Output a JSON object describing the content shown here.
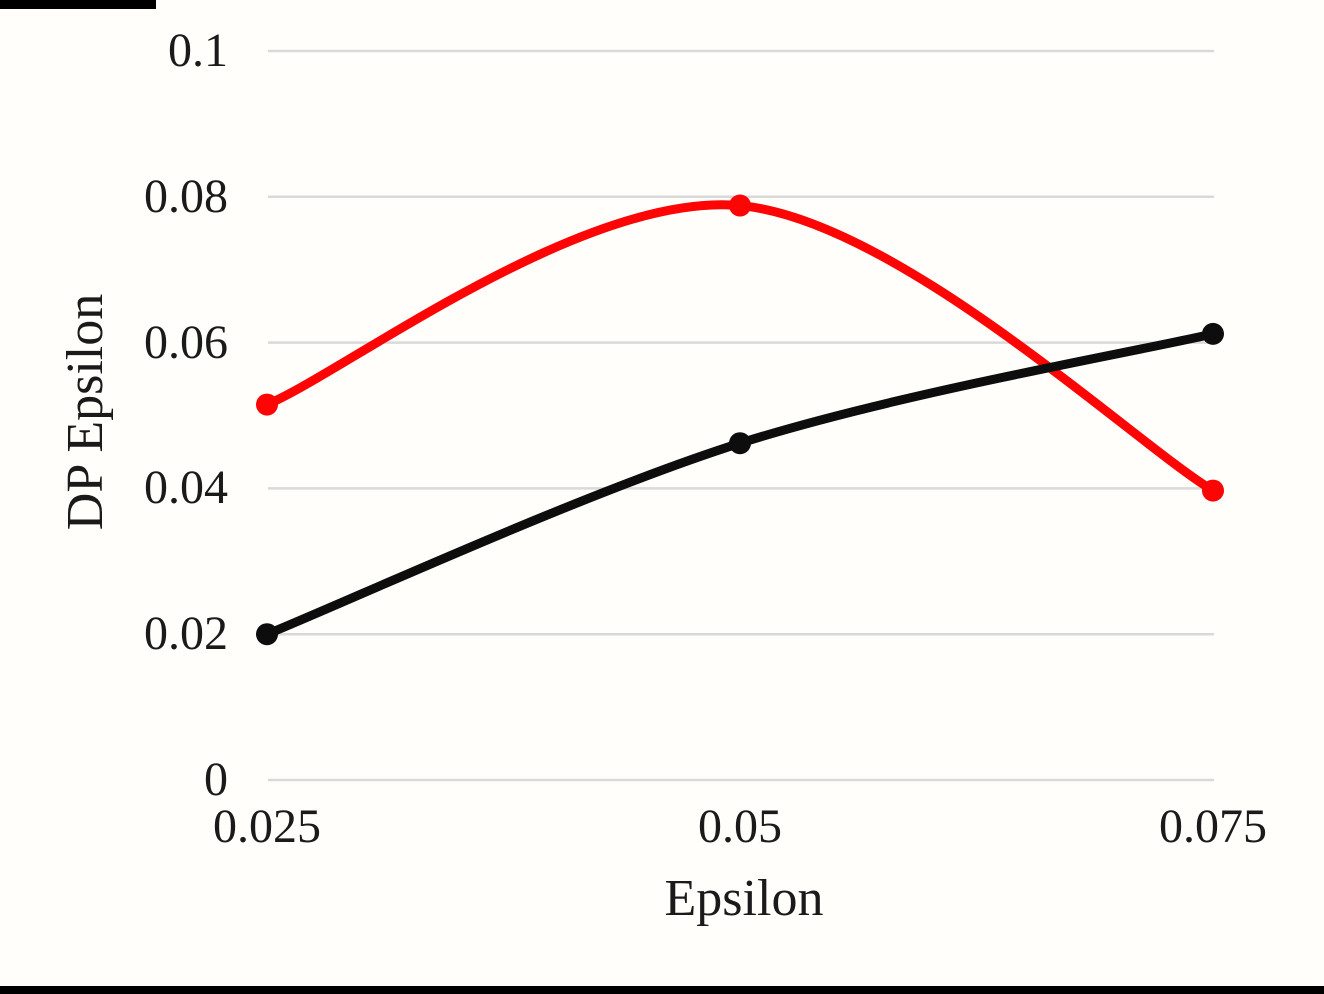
{
  "colors": {
    "background": "#fffefb",
    "gridline": "#d9d9d9",
    "artifact_bar": "#000000",
    "series_red": "#fe0505",
    "series_black": "#0d0d0d"
  },
  "chart_data": {
    "type": "line",
    "title": "",
    "xlabel": "Epsilon",
    "ylabel": "DP Epsilon",
    "x": [
      0.025,
      0.05,
      0.075
    ],
    "x_tick_labels": [
      "0.025",
      "0.05",
      "0.075"
    ],
    "y_tick_labels": [
      "0",
      "0.02",
      "0.04",
      "0.06",
      "0.08",
      "0.1"
    ],
    "ylim": [
      0,
      0.1
    ],
    "y_tick_step": 0.02,
    "grid": true,
    "legend": "none",
    "line_style": "smooth",
    "markers": "filled-circle",
    "series": [
      {
        "name": "red-series",
        "color": "#fe0505",
        "values": [
          0.0515,
          0.0788,
          0.0397
        ]
      },
      {
        "name": "black-series",
        "color": "#0d0d0d",
        "values": [
          0.02,
          0.0462,
          0.0612
        ]
      }
    ]
  }
}
